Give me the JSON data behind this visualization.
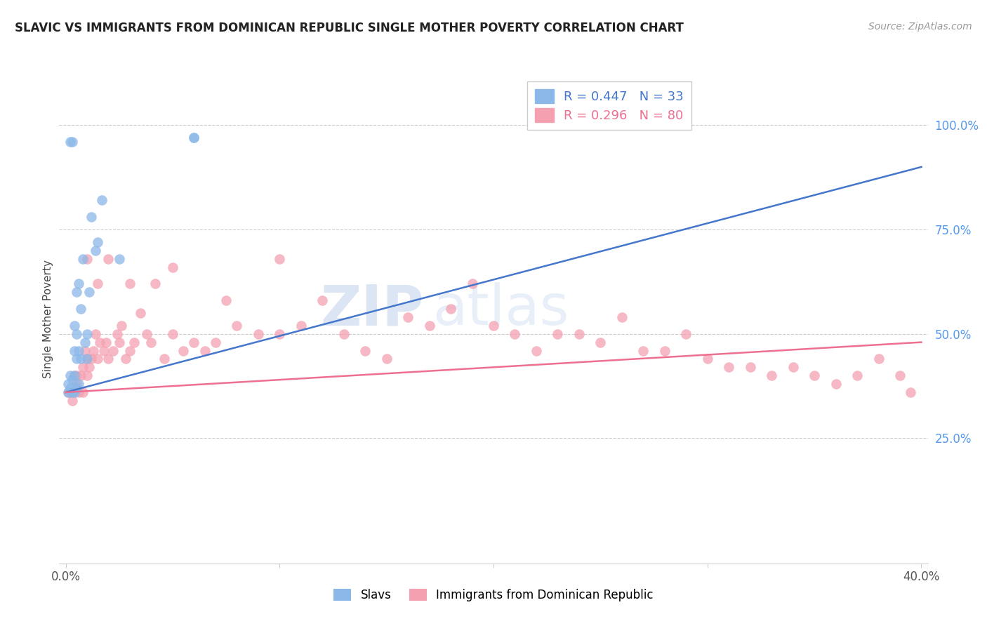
{
  "title": "SLAVIC VS IMMIGRANTS FROM DOMINICAN REPUBLIC SINGLE MOTHER POVERTY CORRELATION CHART",
  "source": "Source: ZipAtlas.com",
  "ylabel": "Single Mother Poverty",
  "right_yticks": [
    "100.0%",
    "75.0%",
    "50.0%",
    "25.0%"
  ],
  "right_ytick_vals": [
    1.0,
    0.75,
    0.5,
    0.25
  ],
  "xlim": [
    0.0,
    0.4
  ],
  "ylim": [
    0.0,
    1.1
  ],
  "legend_r1": "R = 0.447   N = 33",
  "legend_r2": "R = 0.296   N = 80",
  "color_blue": "#8BB8E8",
  "color_pink": "#F4A0B0",
  "color_line_blue": "#4477CC",
  "color_line_pink": "#EE7090",
  "watermark_zip": "ZIP",
  "watermark_atlas": "atlas",
  "slavs_x": [
    0.001,
    0.001,
    0.002,
    0.002,
    0.002,
    0.003,
    0.003,
    0.003,
    0.004,
    0.004,
    0.004,
    0.004,
    0.005,
    0.005,
    0.005,
    0.005,
    0.006,
    0.006,
    0.006,
    0.007,
    0.007,
    0.008,
    0.009,
    0.01,
    0.01,
    0.011,
    0.012,
    0.014,
    0.015,
    0.017,
    0.025,
    0.06,
    0.06
  ],
  "slavs_y": [
    0.36,
    0.38,
    0.37,
    0.4,
    0.96,
    0.36,
    0.39,
    0.96,
    0.36,
    0.4,
    0.46,
    0.52,
    0.37,
    0.44,
    0.5,
    0.6,
    0.38,
    0.46,
    0.62,
    0.44,
    0.56,
    0.68,
    0.48,
    0.44,
    0.5,
    0.6,
    0.78,
    0.7,
    0.72,
    0.82,
    0.68,
    0.97,
    0.97
  ],
  "dr_x": [
    0.001,
    0.002,
    0.003,
    0.004,
    0.004,
    0.005,
    0.005,
    0.006,
    0.007,
    0.008,
    0.008,
    0.009,
    0.01,
    0.01,
    0.011,
    0.012,
    0.013,
    0.014,
    0.015,
    0.016,
    0.018,
    0.019,
    0.02,
    0.022,
    0.024,
    0.025,
    0.026,
    0.028,
    0.03,
    0.032,
    0.035,
    0.038,
    0.04,
    0.042,
    0.046,
    0.05,
    0.055,
    0.06,
    0.065,
    0.07,
    0.075,
    0.08,
    0.09,
    0.1,
    0.11,
    0.12,
    0.13,
    0.14,
    0.15,
    0.16,
    0.17,
    0.18,
    0.19,
    0.2,
    0.21,
    0.22,
    0.23,
    0.24,
    0.25,
    0.26,
    0.27,
    0.28,
    0.29,
    0.3,
    0.31,
    0.32,
    0.33,
    0.34,
    0.35,
    0.36,
    0.37,
    0.38,
    0.39,
    0.395,
    0.01,
    0.015,
    0.02,
    0.03,
    0.05,
    0.1
  ],
  "dr_y": [
    0.36,
    0.36,
    0.34,
    0.36,
    0.4,
    0.38,
    0.4,
    0.36,
    0.4,
    0.36,
    0.42,
    0.46,
    0.4,
    0.44,
    0.42,
    0.44,
    0.46,
    0.5,
    0.44,
    0.48,
    0.46,
    0.48,
    0.44,
    0.46,
    0.5,
    0.48,
    0.52,
    0.44,
    0.46,
    0.48,
    0.55,
    0.5,
    0.48,
    0.62,
    0.44,
    0.5,
    0.46,
    0.48,
    0.46,
    0.48,
    0.58,
    0.52,
    0.5,
    0.5,
    0.52,
    0.58,
    0.5,
    0.46,
    0.44,
    0.54,
    0.52,
    0.56,
    0.62,
    0.52,
    0.5,
    0.46,
    0.5,
    0.5,
    0.48,
    0.54,
    0.46,
    0.46,
    0.5,
    0.44,
    0.42,
    0.42,
    0.4,
    0.42,
    0.4,
    0.38,
    0.4,
    0.44,
    0.4,
    0.36,
    0.68,
    0.62,
    0.68,
    0.62,
    0.66,
    0.68
  ],
  "blue_line_x": [
    0.0,
    0.4
  ],
  "blue_line_y": [
    0.36,
    0.9
  ],
  "pink_line_x": [
    0.0,
    0.4
  ],
  "pink_line_y": [
    0.36,
    0.48
  ]
}
